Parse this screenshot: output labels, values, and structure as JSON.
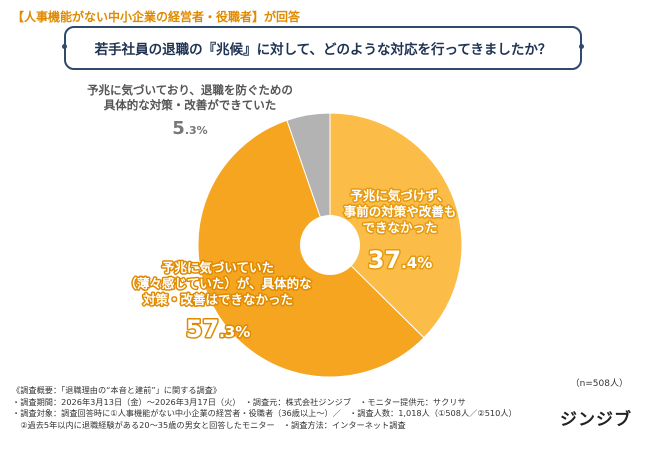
{
  "header": {
    "target": "【人事機能がない中小企業の経営者・役職者】が回答"
  },
  "question": "若手社員の退職の『兆候』に対して、どのような対応を行ってきましたか？",
  "chart_data": {
    "type": "pie",
    "donut": true,
    "slices": [
      {
        "label_lines": [
          "予兆に気づけず、",
          "事前の対策や改善も",
          "できなかった"
        ],
        "value": 37.4,
        "value_int": "37",
        "value_dec": ".4%",
        "color": "#fbbd48"
      },
      {
        "label_lines": [
          "予兆に気づいていた",
          "（薄々感じていた）が、具体的な",
          "対策・改善はできなかった"
        ],
        "value": 57.3,
        "value_int": "57",
        "value_dec": ".3%",
        "color": "#f5a51f"
      },
      {
        "label_lines": [
          "予兆に気づいており、退職を防ぐための",
          "具体的な対策・改善ができていた"
        ],
        "value": 5.3,
        "value_int": "5",
        "value_dec": ".3%",
        "color": "#b3b3b3"
      }
    ]
  },
  "sample_size": "（n=508人）",
  "footer": {
    "survey_title": "《調査概要：「退職理由の“本音と建前”」に関する調査》",
    "line1": "・調査期間：2026年3月13日（金）〜2026年3月17日（火）　・調査元：株式会社ジンジブ　・モニター提供元：サクリサ",
    "line2": "・調査対象：調査回答時に①人事機能がない中小企業の経営者・役職者（36歳以上〜）／　・調査人数：1,018人（①508人／②510人）",
    "line3": "　②過去5年以内に退職経験がある20〜35歳の男女と回答したモニター　・調査方法：インターネット調査"
  },
  "brand": {
    "logo_text": "ジンジブ"
  }
}
